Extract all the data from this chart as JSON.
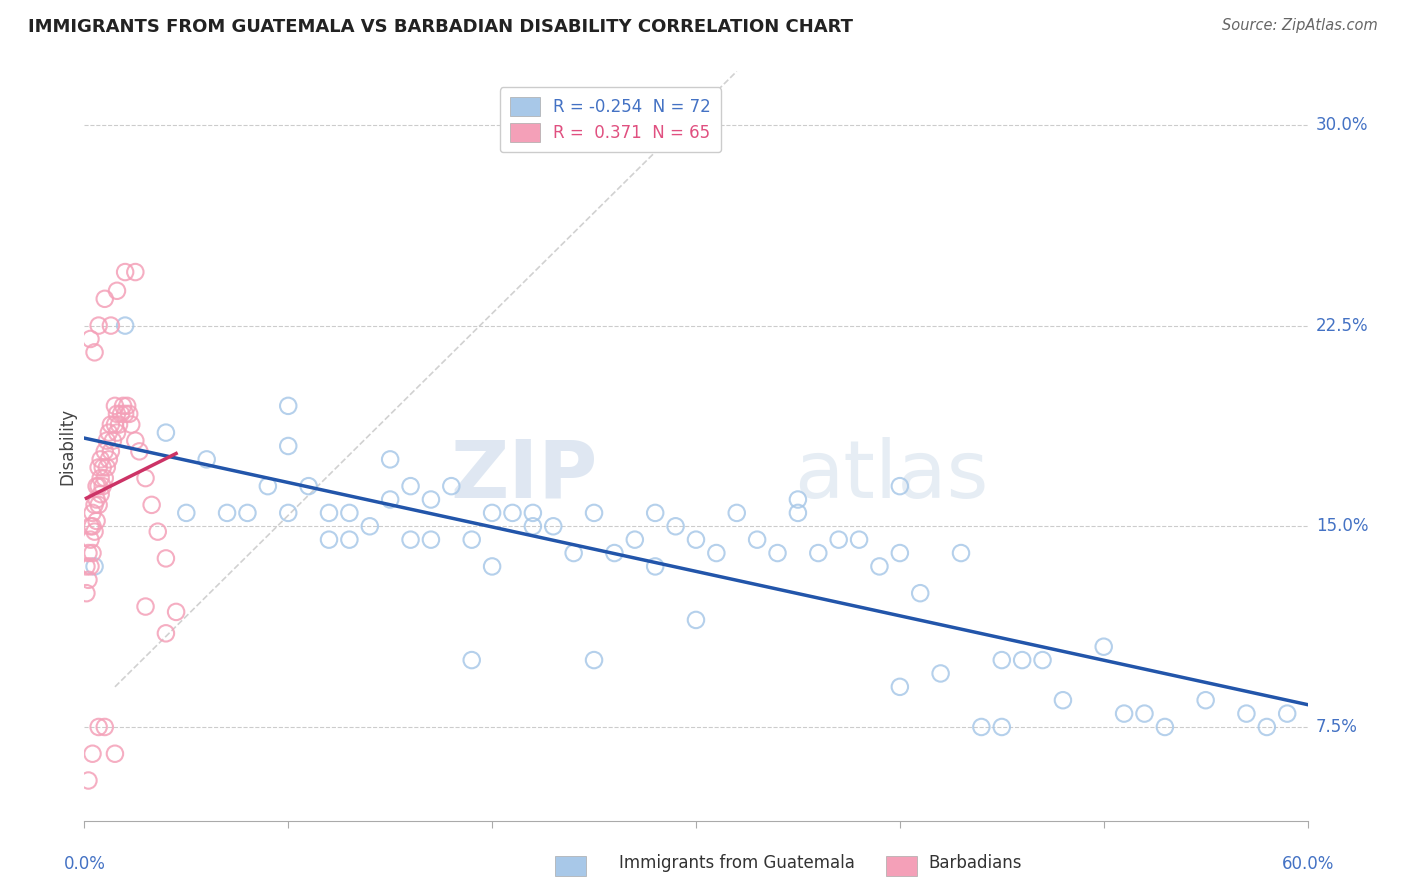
{
  "title": "IMMIGRANTS FROM GUATEMALA VS BARBADIAN DISABILITY CORRELATION CHART",
  "source": "Source: ZipAtlas.com",
  "ylabel": "Disability",
  "ytick_vals": [
    0.075,
    0.15,
    0.225,
    0.3
  ],
  "ytick_labels": [
    "7.5%",
    "15.0%",
    "22.5%",
    "30.0%"
  ],
  "xlim": [
    0.0,
    0.6
  ],
  "ylim": [
    0.04,
    0.32
  ],
  "legend_blue_r": "-0.254",
  "legend_blue_n": "72",
  "legend_pink_r": "0.371",
  "legend_pink_n": "65",
  "blue_color": "#a8c8e8",
  "pink_color": "#f4a0b8",
  "blue_line_color": "#2255aa",
  "pink_line_color": "#cc3366",
  "ref_line_color": "#cccccc",
  "watermark_color": "#ccd8ec",
  "blue_scatter_x": [
    0.005,
    0.02,
    0.04,
    0.05,
    0.06,
    0.07,
    0.08,
    0.09,
    0.1,
    0.1,
    0.11,
    0.12,
    0.12,
    0.13,
    0.14,
    0.15,
    0.15,
    0.16,
    0.17,
    0.17,
    0.18,
    0.19,
    0.2,
    0.2,
    0.21,
    0.22,
    0.23,
    0.24,
    0.25,
    0.26,
    0.27,
    0.28,
    0.28,
    0.29,
    0.3,
    0.31,
    0.32,
    0.33,
    0.34,
    0.35,
    0.36,
    0.37,
    0.38,
    0.39,
    0.4,
    0.4,
    0.41,
    0.42,
    0.43,
    0.44,
    0.45,
    0.46,
    0.47,
    0.48,
    0.5,
    0.51,
    0.52,
    0.53,
    0.55,
    0.57,
    0.58,
    0.59,
    0.1,
    0.13,
    0.16,
    0.19,
    0.22,
    0.25,
    0.3,
    0.35,
    0.4,
    0.45
  ],
  "blue_scatter_y": [
    0.135,
    0.225,
    0.185,
    0.155,
    0.175,
    0.155,
    0.155,
    0.165,
    0.155,
    0.18,
    0.165,
    0.155,
    0.145,
    0.155,
    0.15,
    0.16,
    0.175,
    0.165,
    0.16,
    0.145,
    0.165,
    0.145,
    0.155,
    0.135,
    0.155,
    0.15,
    0.15,
    0.14,
    0.155,
    0.14,
    0.145,
    0.155,
    0.135,
    0.15,
    0.145,
    0.14,
    0.155,
    0.145,
    0.14,
    0.155,
    0.14,
    0.145,
    0.145,
    0.135,
    0.14,
    0.165,
    0.125,
    0.095,
    0.14,
    0.075,
    0.075,
    0.1,
    0.1,
    0.085,
    0.105,
    0.08,
    0.08,
    0.075,
    0.085,
    0.08,
    0.075,
    0.08,
    0.195,
    0.145,
    0.145,
    0.1,
    0.155,
    0.1,
    0.115,
    0.16,
    0.09,
    0.1
  ],
  "pink_scatter_x": [
    0.001,
    0.001,
    0.002,
    0.002,
    0.003,
    0.003,
    0.003,
    0.004,
    0.004,
    0.004,
    0.005,
    0.005,
    0.006,
    0.006,
    0.006,
    0.007,
    0.007,
    0.007,
    0.008,
    0.008,
    0.008,
    0.009,
    0.009,
    0.01,
    0.01,
    0.011,
    0.011,
    0.012,
    0.012,
    0.013,
    0.013,
    0.014,
    0.015,
    0.015,
    0.016,
    0.016,
    0.017,
    0.018,
    0.019,
    0.02,
    0.021,
    0.022,
    0.023,
    0.025,
    0.027,
    0.03,
    0.033,
    0.036,
    0.04,
    0.045,
    0.003,
    0.005,
    0.007,
    0.01,
    0.013,
    0.016,
    0.02,
    0.025,
    0.03,
    0.04,
    0.002,
    0.004,
    0.007,
    0.01,
    0.015
  ],
  "pink_scatter_y": [
    0.125,
    0.135,
    0.13,
    0.14,
    0.135,
    0.145,
    0.15,
    0.14,
    0.15,
    0.155,
    0.148,
    0.158,
    0.152,
    0.16,
    0.165,
    0.158,
    0.165,
    0.172,
    0.162,
    0.168,
    0.175,
    0.165,
    0.172,
    0.168,
    0.178,
    0.172,
    0.182,
    0.175,
    0.185,
    0.178,
    0.188,
    0.182,
    0.188,
    0.195,
    0.185,
    0.192,
    0.188,
    0.192,
    0.195,
    0.192,
    0.195,
    0.192,
    0.188,
    0.182,
    0.178,
    0.168,
    0.158,
    0.148,
    0.138,
    0.118,
    0.22,
    0.215,
    0.225,
    0.235,
    0.225,
    0.238,
    0.245,
    0.245,
    0.12,
    0.11,
    0.055,
    0.065,
    0.075,
    0.075,
    0.065
  ]
}
